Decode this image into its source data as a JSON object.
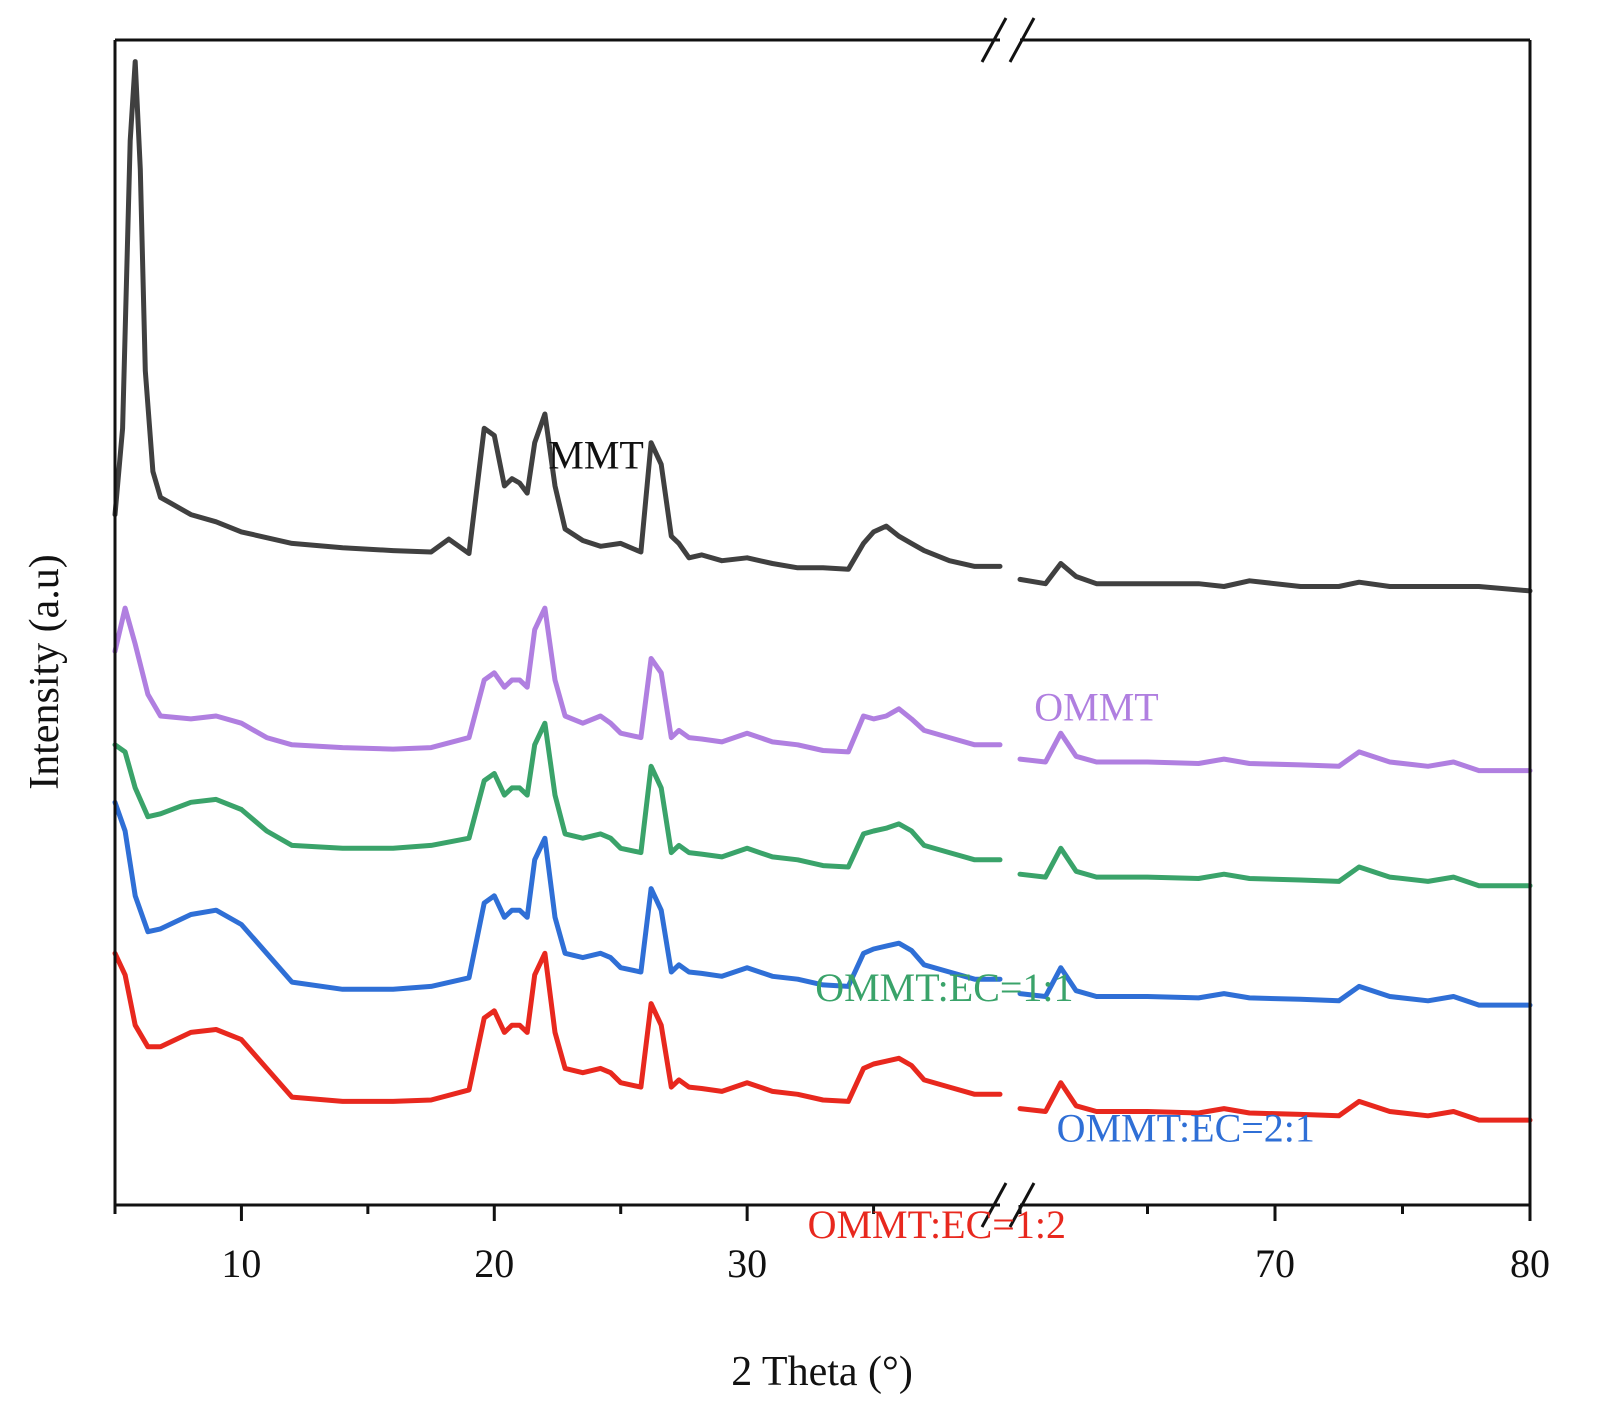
{
  "chart_data": {
    "type": "line",
    "xlabel": "2 Theta (°)",
    "ylabel": "Intensity (a.u)",
    "x_ticks_labeled": [
      10,
      20,
      30,
      70,
      80
    ],
    "x_break": {
      "from": 40,
      "to": 60
    },
    "xlim_left": [
      5,
      40
    ],
    "xlim_right": [
      60,
      80
    ],
    "y_ticks": "none",
    "grid": false,
    "series": [
      {
        "name": "MMT",
        "color": "#404040",
        "offset": 4.2,
        "x": [
          5,
          5.3,
          5.6,
          5.8,
          6.0,
          6.2,
          6.5,
          6.8,
          7.2,
          8,
          9,
          10,
          12,
          14,
          16,
          17.5,
          18.2,
          19,
          19.6,
          20.0,
          20.4,
          20.7,
          21.0,
          21.3,
          21.6,
          22.0,
          22.4,
          22.8,
          23.5,
          24.2,
          25,
          25.8,
          26.2,
          26.6,
          27.0,
          27.3,
          27.7,
          28.2,
          29,
          30,
          31,
          32,
          33,
          34,
          34.6,
          35.0,
          35.5,
          36.0,
          36.5,
          37.0,
          38,
          39,
          40,
          60,
          61,
          61.6,
          62.2,
          63,
          65,
          67,
          68,
          69,
          71,
          72.5,
          73.3,
          74.5,
          76,
          78,
          80
        ],
        "y": [
          0,
          0.6,
          2.6,
          3.15,
          2.4,
          1.0,
          0.3,
          0.12,
          0.08,
          0,
          -0.05,
          -0.12,
          -0.2,
          -0.23,
          -0.25,
          -0.26,
          -0.17,
          -0.27,
          0.6,
          0.55,
          0.2,
          0.25,
          0.22,
          0.15,
          0.5,
          0.7,
          0.2,
          -0.1,
          -0.18,
          -0.22,
          -0.2,
          -0.26,
          0.5,
          0.35,
          -0.15,
          -0.2,
          -0.3,
          -0.28,
          -0.32,
          -0.3,
          -0.34,
          -0.37,
          -0.37,
          -0.38,
          -0.2,
          -0.12,
          -0.08,
          -0.15,
          -0.2,
          -0.25,
          -0.32,
          -0.36,
          -0.36,
          -0.45,
          -0.48,
          -0.34,
          -0.43,
          -0.48,
          -0.48,
          -0.48,
          -0.5,
          -0.46,
          -0.5,
          -0.5,
          -0.47,
          -0.5,
          -0.5,
          -0.5,
          -0.53
        ]
      },
      {
        "name": "OMMT",
        "color": "#b07fe0",
        "offset": 3.0,
        "x": [
          5,
          5.4,
          5.8,
          6.3,
          6.8,
          8,
          9,
          10,
          11,
          12,
          14,
          16,
          17.5,
          19,
          19.6,
          20.0,
          20.4,
          20.7,
          21.0,
          21.3,
          21.6,
          22.0,
          22.4,
          22.8,
          23.5,
          24.2,
          24.6,
          25,
          25.8,
          26.2,
          26.6,
          27.0,
          27.3,
          27.7,
          28.2,
          29,
          30,
          31,
          32,
          33,
          34,
          34.6,
          35.0,
          35.5,
          36.0,
          36.5,
          37.0,
          38,
          39,
          40,
          60,
          61,
          61.6,
          62.2,
          63,
          65,
          67,
          68,
          69,
          71,
          72.5,
          73.3,
          74.5,
          76,
          77,
          78,
          80
        ],
        "y": [
          0.25,
          0.55,
          0.3,
          -0.05,
          -0.2,
          -0.22,
          -0.2,
          -0.25,
          -0.35,
          -0.4,
          -0.42,
          -0.43,
          -0.42,
          -0.35,
          0.05,
          0.1,
          0.0,
          0.05,
          0.05,
          0.0,
          0.4,
          0.55,
          0.05,
          -0.2,
          -0.25,
          -0.2,
          -0.25,
          -0.32,
          -0.35,
          0.2,
          0.1,
          -0.35,
          -0.3,
          -0.35,
          -0.36,
          -0.38,
          -0.32,
          -0.38,
          -0.4,
          -0.44,
          -0.45,
          -0.2,
          -0.22,
          -0.2,
          -0.15,
          -0.22,
          -0.3,
          -0.35,
          -0.4,
          -0.4,
          -0.5,
          -0.52,
          -0.32,
          -0.48,
          -0.52,
          -0.52,
          -0.53,
          -0.5,
          -0.53,
          -0.54,
          -0.55,
          -0.45,
          -0.52,
          -0.55,
          -0.52,
          -0.58,
          -0.58
        ]
      },
      {
        "name": "OMMT:EC=1:1",
        "color": "#3aa36a",
        "offset": 2.0,
        "x": [
          5,
          5.4,
          5.8,
          6.3,
          6.8,
          8,
          9,
          10,
          11,
          12,
          14,
          16,
          17.5,
          19,
          19.6,
          20.0,
          20.4,
          20.7,
          21.0,
          21.3,
          21.6,
          22.0,
          22.4,
          22.8,
          23.5,
          24.2,
          24.6,
          25,
          25.8,
          26.2,
          26.6,
          27.0,
          27.3,
          27.7,
          28.2,
          29,
          30,
          31,
          32,
          33,
          34,
          34.6,
          35.0,
          35.5,
          36.0,
          36.5,
          37.0,
          38,
          39,
          40,
          60,
          61,
          61.6,
          62.2,
          63,
          65,
          67,
          68,
          69,
          71,
          72.5,
          73.3,
          74.5,
          76,
          77,
          78,
          80
        ],
        "y": [
          0.6,
          0.55,
          0.3,
          0.1,
          0.12,
          0.2,
          0.22,
          0.15,
          0.0,
          -0.1,
          -0.12,
          -0.12,
          -0.1,
          -0.05,
          0.35,
          0.4,
          0.25,
          0.3,
          0.3,
          0.25,
          0.6,
          0.75,
          0.25,
          -0.02,
          -0.05,
          -0.02,
          -0.05,
          -0.12,
          -0.15,
          0.45,
          0.3,
          -0.15,
          -0.1,
          -0.15,
          -0.16,
          -0.18,
          -0.12,
          -0.18,
          -0.2,
          -0.24,
          -0.25,
          -0.02,
          0.0,
          0.02,
          0.05,
          0.0,
          -0.1,
          -0.15,
          -0.2,
          -0.2,
          -0.3,
          -0.32,
          -0.12,
          -0.28,
          -0.32,
          -0.32,
          -0.33,
          -0.3,
          -0.33,
          -0.34,
          -0.35,
          -0.25,
          -0.32,
          -0.35,
          -0.32,
          -0.38,
          -0.38
        ]
      },
      {
        "name": "OMMT:EC=2:1",
        "color": "#2f6fd6",
        "offset": 1.0,
        "x": [
          5,
          5.4,
          5.8,
          6.3,
          6.8,
          8,
          9,
          10,
          11,
          12,
          14,
          16,
          17.5,
          19,
          19.6,
          20.0,
          20.4,
          20.7,
          21.0,
          21.3,
          21.6,
          22.0,
          22.4,
          22.8,
          23.5,
          24.2,
          24.6,
          25,
          25.8,
          26.2,
          26.6,
          27.0,
          27.3,
          27.7,
          28.2,
          29,
          30,
          31,
          32,
          33,
          34,
          34.6,
          35.0,
          35.5,
          36.0,
          36.5,
          37.0,
          38,
          39,
          40,
          60,
          61,
          61.6,
          62.2,
          63,
          65,
          67,
          68,
          69,
          71,
          72.5,
          73.3,
          74.5,
          76,
          77,
          78,
          80
        ],
        "y": [
          1.2,
          1.0,
          0.55,
          0.3,
          0.32,
          0.42,
          0.45,
          0.35,
          0.15,
          -0.05,
          -0.1,
          -0.1,
          -0.08,
          -0.02,
          0.5,
          0.55,
          0.4,
          0.45,
          0.45,
          0.4,
          0.8,
          0.95,
          0.4,
          0.15,
          0.12,
          0.15,
          0.12,
          0.05,
          0.02,
          0.6,
          0.45,
          0.02,
          0.07,
          0.02,
          0.01,
          -0.01,
          0.05,
          -0.01,
          -0.03,
          -0.07,
          -0.08,
          0.15,
          0.18,
          0.2,
          0.22,
          0.17,
          0.07,
          0.02,
          -0.03,
          -0.03,
          -0.13,
          -0.15,
          0.05,
          -0.11,
          -0.15,
          -0.15,
          -0.16,
          -0.13,
          -0.16,
          -0.17,
          -0.18,
          -0.08,
          -0.15,
          -0.18,
          -0.15,
          -0.21,
          -0.21
        ]
      },
      {
        "name": "OMMT:EC=1:2",
        "color": "#e8281e",
        "offset": 0.0,
        "x": [
          5,
          5.4,
          5.8,
          6.3,
          6.8,
          8,
          9,
          10,
          11,
          12,
          14,
          16,
          17.5,
          19,
          19.6,
          20.0,
          20.4,
          20.7,
          21.0,
          21.3,
          21.6,
          22.0,
          22.4,
          22.8,
          23.5,
          24.2,
          24.6,
          25,
          25.8,
          26.2,
          26.6,
          27.0,
          27.3,
          27.7,
          28.2,
          29,
          30,
          31,
          32,
          33,
          34,
          34.6,
          35.0,
          35.5,
          36.0,
          36.5,
          37.0,
          38,
          39,
          40,
          60,
          61,
          61.6,
          62.2,
          63,
          65,
          67,
          68,
          69,
          71,
          72.5,
          73.3,
          74.5,
          76,
          77,
          78,
          80
        ],
        "y": [
          1.15,
          1.0,
          0.65,
          0.5,
          0.5,
          0.6,
          0.62,
          0.55,
          0.35,
          0.15,
          0.12,
          0.12,
          0.13,
          0.2,
          0.7,
          0.75,
          0.6,
          0.65,
          0.65,
          0.6,
          1.0,
          1.15,
          0.6,
          0.35,
          0.32,
          0.35,
          0.32,
          0.25,
          0.22,
          0.8,
          0.65,
          0.22,
          0.27,
          0.22,
          0.21,
          0.19,
          0.25,
          0.19,
          0.17,
          0.13,
          0.12,
          0.35,
          0.38,
          0.4,
          0.42,
          0.37,
          0.27,
          0.22,
          0.17,
          0.17,
          0.07,
          0.05,
          0.25,
          0.09,
          0.05,
          0.05,
          0.04,
          0.07,
          0.04,
          0.03,
          0.02,
          0.12,
          0.05,
          0.02,
          0.05,
          -0.01,
          -0.01
        ]
      }
    ]
  }
}
